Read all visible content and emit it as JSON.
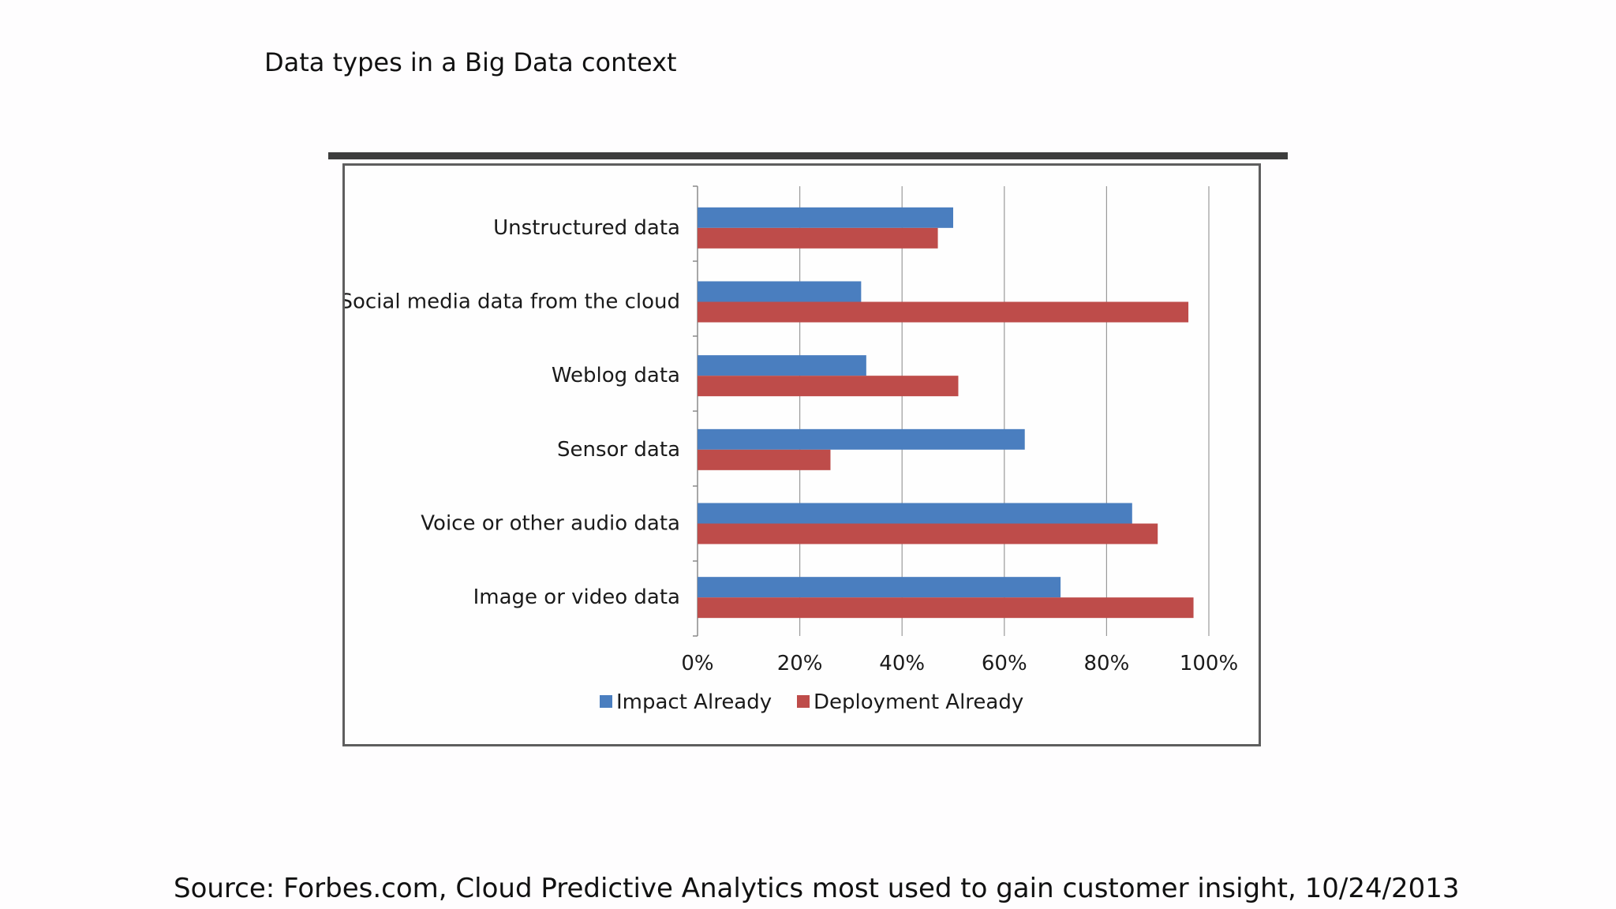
{
  "slide": {
    "title": "Data types in a Big Data context",
    "source": "Source: Forbes.com, Cloud Predictive Analytics most used to gain customer insight, 10/24/2013"
  },
  "chart_data": {
    "type": "bar",
    "orientation": "horizontal",
    "title": "",
    "xlabel": "",
    "ylabel": "",
    "categories": [
      "Unstructured data",
      "Social media data from the cloud",
      "Weblog data",
      "Sensor data",
      "Voice or other audio data",
      "Image or video data"
    ],
    "series": [
      {
        "name": "Impact Already",
        "color": "#4a7ebf",
        "values": [
          50,
          32,
          33,
          64,
          85,
          71
        ]
      },
      {
        "name": "Deployment Already",
        "color": "#be4c4a",
        "values": [
          47,
          96,
          51,
          26,
          90,
          97
        ]
      }
    ],
    "xlim": [
      0,
      100
    ],
    "xticks": [
      "0%",
      "20%",
      "40%",
      "60%",
      "80%",
      "100%"
    ],
    "xtick_values": [
      0,
      20,
      40,
      60,
      80,
      100
    ],
    "grid": "vertical",
    "legend": "bottom"
  }
}
